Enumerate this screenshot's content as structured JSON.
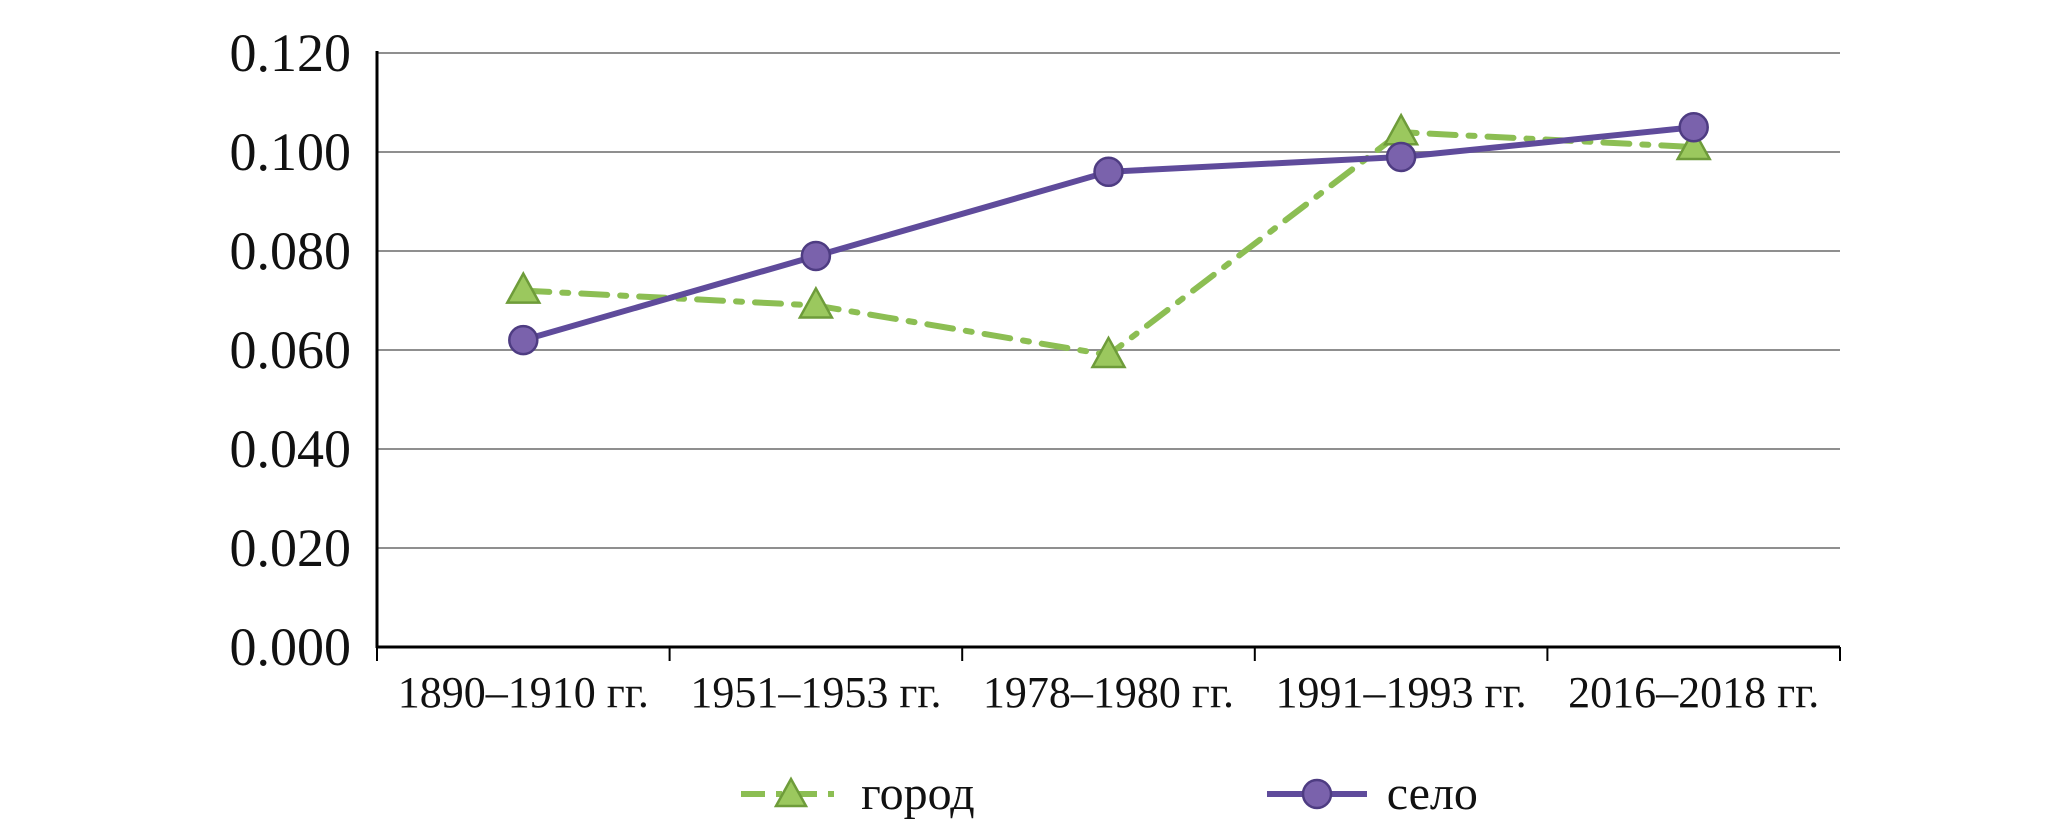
{
  "chart_data": {
    "type": "line",
    "categories": [
      "1890–1910 гг.",
      "1951–1953 гг.",
      "1978–1980 гг.",
      "1991–1993 гг.",
      "2016–2018 гг."
    ],
    "series": [
      {
        "name": "город",
        "values": [
          0.072,
          0.069,
          0.059,
          0.104,
          0.101
        ],
        "color": "#8CBE53",
        "marker": "triangle",
        "marker_fill": "#9BC85E",
        "marker_stroke": "#6E9C3A",
        "line_style": "dash-dot"
      },
      {
        "name": "село",
        "values": [
          0.062,
          0.079,
          0.096,
          0.099,
          0.105
        ],
        "color": "#5F4B9B",
        "marker": "circle",
        "marker_fill": "#7A62AC",
        "marker_stroke": "#4E3C82",
        "line_style": "solid"
      }
    ],
    "title": "",
    "xlabel": "",
    "ylabel": "",
    "ylim": [
      0,
      0.12
    ],
    "ytick_step": 0.02,
    "ytick_labels": [
      "0.000",
      "0.020",
      "0.040",
      "0.060",
      "0.080",
      "0.100",
      "0.120"
    ],
    "grid": true,
    "grid_color": "#8f8f8f",
    "axis_color": "#000000",
    "legend_position": "bottom"
  },
  "legend": {
    "items": [
      {
        "label": "город"
      },
      {
        "label": "село"
      }
    ]
  }
}
